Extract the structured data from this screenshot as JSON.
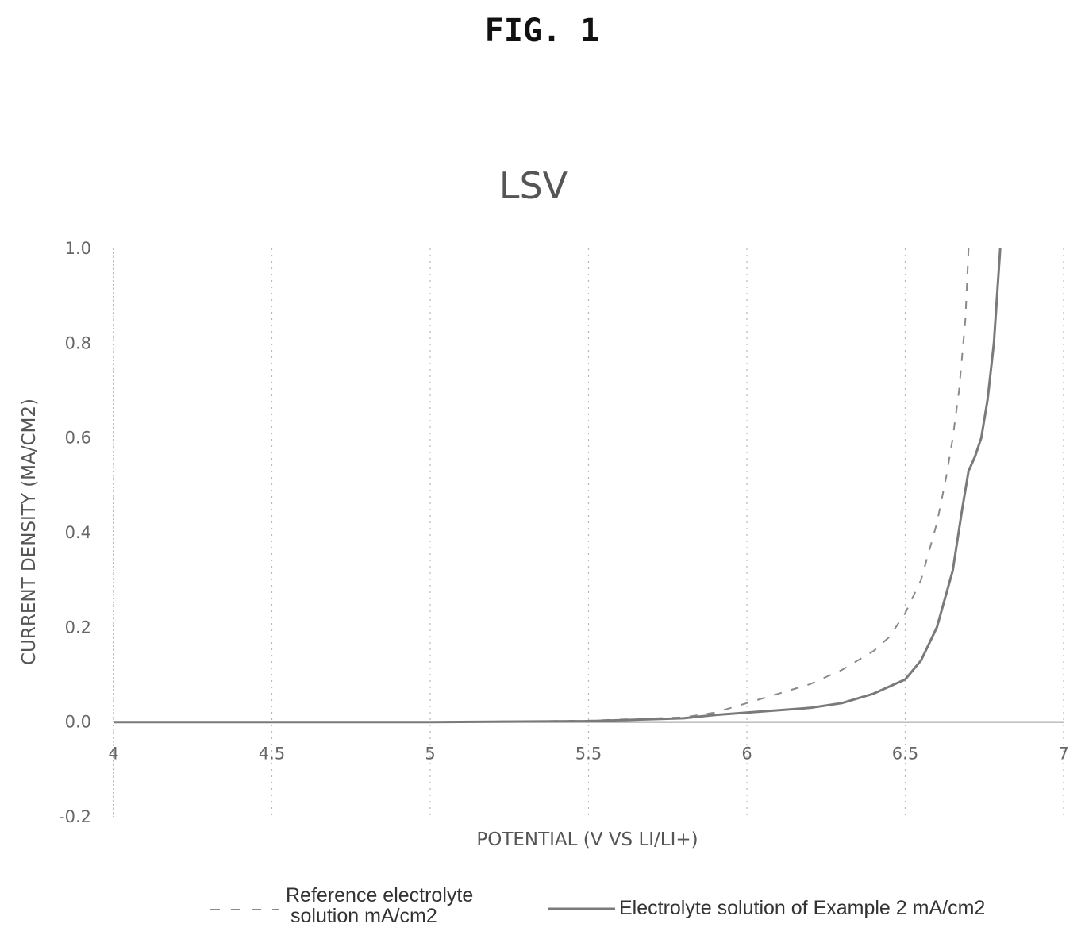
{
  "figure_label": "FIG. 1",
  "chart_data": {
    "type": "line",
    "title": "LSV",
    "xlabel": "POTENTIAL (V VS LI/LI+)",
    "ylabel": "CURRENT DENSITY (MA/CM2)",
    "xlim": [
      4,
      7
    ],
    "ylim": [
      -0.2,
      1.0
    ],
    "x_ticks": [
      "4",
      "4.5",
      "5",
      "5.5",
      "6",
      "6.5",
      "7"
    ],
    "y_ticks": [
      "-0.2",
      "0.0",
      "0.2",
      "0.4",
      "0.6",
      "0.8",
      "1.0"
    ],
    "grid": "vertical dotted",
    "legend_placement": "bottom",
    "series": [
      {
        "name": "Reference electrolyte solution mA/cm2",
        "legend_lines": [
          "Reference electrolyte",
          "solution mA/cm2"
        ],
        "style": "dashed",
        "color": "#8a8a8a",
        "points": [
          [
            4.0,
            0.0
          ],
          [
            5.0,
            0.0
          ],
          [
            5.5,
            0.003
          ],
          [
            5.8,
            0.01
          ],
          [
            5.9,
            0.02
          ],
          [
            6.0,
            0.04
          ],
          [
            6.1,
            0.06
          ],
          [
            6.2,
            0.08
          ],
          [
            6.3,
            0.11
          ],
          [
            6.4,
            0.15
          ],
          [
            6.45,
            0.18
          ],
          [
            6.5,
            0.23
          ],
          [
            6.55,
            0.3
          ],
          [
            6.6,
            0.42
          ],
          [
            6.63,
            0.52
          ],
          [
            6.65,
            0.6
          ],
          [
            6.67,
            0.7
          ],
          [
            6.69,
            0.85
          ],
          [
            6.7,
            1.0
          ]
        ]
      },
      {
        "name": "Electrolyte solution of Example 2  mA/cm2",
        "legend_lines": [
          "Electrolyte solution of Example 2  mA/cm2"
        ],
        "style": "solid",
        "color": "#7a7a7a",
        "points": [
          [
            4.0,
            0.0
          ],
          [
            5.0,
            0.0
          ],
          [
            5.5,
            0.002
          ],
          [
            5.8,
            0.008
          ],
          [
            5.9,
            0.015
          ],
          [
            6.0,
            0.02
          ],
          [
            6.2,
            0.03
          ],
          [
            6.3,
            0.04
          ],
          [
            6.4,
            0.06
          ],
          [
            6.5,
            0.09
          ],
          [
            6.55,
            0.13
          ],
          [
            6.6,
            0.2
          ],
          [
            6.65,
            0.32
          ],
          [
            6.68,
            0.45
          ],
          [
            6.7,
            0.53
          ],
          [
            6.72,
            0.56
          ],
          [
            6.74,
            0.6
          ],
          [
            6.76,
            0.68
          ],
          [
            6.78,
            0.8
          ],
          [
            6.8,
            1.0
          ]
        ]
      }
    ]
  }
}
